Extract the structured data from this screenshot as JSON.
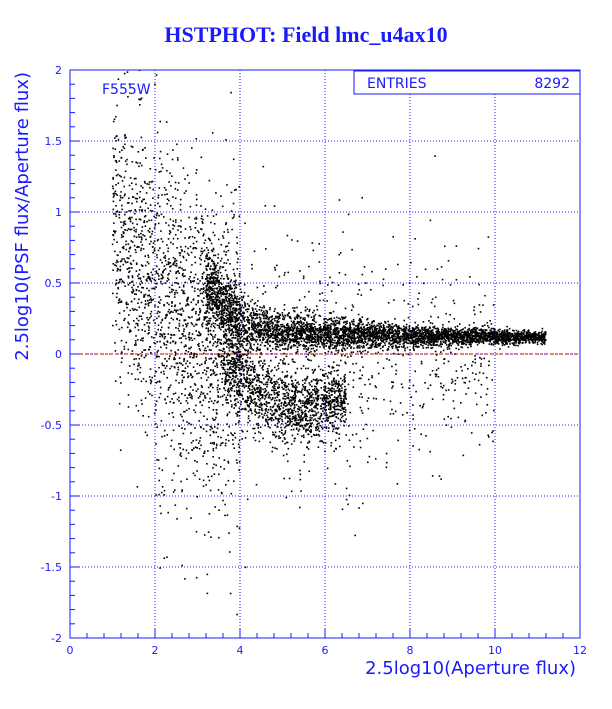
{
  "chart_data": {
    "type": "scatter",
    "title": "HSTPHOT: Field lmc_u4ax10",
    "xlabel": "2.5log10(Aperture flux)",
    "ylabel": "2.5log10(PSF flux/Aperture flux)",
    "xlim": [
      0,
      12
    ],
    "ylim": [
      -2,
      2
    ],
    "x_ticks": [
      "0",
      "2",
      "4",
      "6",
      "8",
      "10",
      "12"
    ],
    "y_ticks": [
      "2",
      "1.5",
      "1",
      "0.5",
      "0",
      "-0.5",
      "-1",
      "-1.5",
      "-2"
    ],
    "grid": true,
    "filter_label": "F555W",
    "stats": {
      "label": "ENTRIES",
      "value": "8292"
    },
    "reference_line_y": 0,
    "point_count": 8292,
    "density_model": [
      {
        "name": "main-locus",
        "fraction": 0.52,
        "x_range": [
          3.2,
          11.2
        ],
        "y_at_x": [
          [
            3.2,
            0.5
          ],
          [
            4.0,
            0.22
          ],
          [
            5.0,
            0.15
          ],
          [
            7.0,
            0.13
          ],
          [
            9.0,
            0.12
          ],
          [
            11.0,
            0.12
          ]
        ],
        "y_sigma_at_x": [
          [
            3.2,
            0.12
          ],
          [
            5.0,
            0.07
          ],
          [
            8.0,
            0.04
          ],
          [
            11.0,
            0.02
          ]
        ]
      },
      {
        "name": "negative-branch",
        "fraction": 0.18,
        "x_range": [
          3.6,
          6.5
        ],
        "y_at_x": [
          [
            3.6,
            0.0
          ],
          [
            4.5,
            -0.3
          ],
          [
            5.5,
            -0.4
          ],
          [
            6.5,
            -0.3
          ]
        ],
        "y_sigma_at_x": [
          [
            3.6,
            0.15
          ],
          [
            6.5,
            0.12
          ]
        ]
      },
      {
        "name": "faint-cloud",
        "fraction": 0.2,
        "x_range": [
          1.0,
          4.0
        ],
        "y_at_x": [
          [
            1.0,
            0.9
          ],
          [
            2.0,
            0.5
          ],
          [
            3.0,
            0.2
          ],
          [
            4.0,
            0.0
          ]
        ],
        "y_sigma_at_x": [
          [
            1.0,
            0.5
          ],
          [
            4.0,
            0.5
          ]
        ]
      },
      {
        "name": "broad-halo",
        "fraction": 0.1,
        "x_range": [
          2.0,
          10.0
        ],
        "y_at_x": [
          [
            2.0,
            -0.2
          ],
          [
            6.0,
            -0.1
          ],
          [
            10.0,
            0.0
          ]
        ],
        "y_sigma_at_x": [
          [
            2.0,
            0.7
          ],
          [
            10.0,
            0.3
          ]
        ]
      }
    ]
  },
  "colors": {
    "axis": "#1a1aff",
    "grid": "#1a1aff",
    "points": "#000000",
    "reference_line": "#cc0000",
    "background": "#ffffff"
  }
}
